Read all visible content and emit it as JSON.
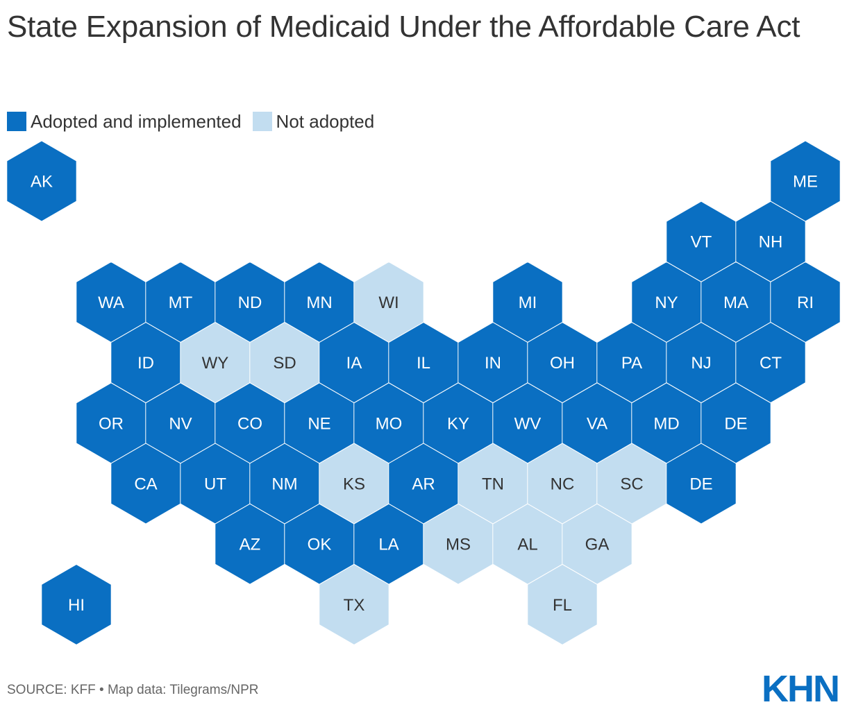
{
  "title": "State Expansion of Medicaid Under the Affordable Care Act",
  "legend": {
    "adopted": "Adopted and implemented",
    "not_adopted": "Not adopted"
  },
  "colors": {
    "adopted": "#0a6fc2",
    "not_adopted": "#c2ddf0",
    "label_on_adopted": "#ffffff",
    "label_on_not_adopted": "#333333"
  },
  "states": [
    {
      "abbr": "AK",
      "status": "adopted",
      "row": 0,
      "col": 0
    },
    {
      "abbr": "ME",
      "status": "adopted",
      "row": 0,
      "col": 11
    },
    {
      "abbr": "VT",
      "status": "adopted",
      "row": 1,
      "col": 9.5
    },
    {
      "abbr": "NH",
      "status": "adopted",
      "row": 1,
      "col": 10.5
    },
    {
      "abbr": "WA",
      "status": "adopted",
      "row": 2,
      "col": 1
    },
    {
      "abbr": "MT",
      "status": "adopted",
      "row": 2,
      "col": 2
    },
    {
      "abbr": "ND",
      "status": "adopted",
      "row": 2,
      "col": 3
    },
    {
      "abbr": "MN",
      "status": "adopted",
      "row": 2,
      "col": 4
    },
    {
      "abbr": "WI",
      "status": "not_adopted",
      "row": 2,
      "col": 5
    },
    {
      "abbr": "MI",
      "status": "adopted",
      "row": 2,
      "col": 7
    },
    {
      "abbr": "NY",
      "status": "adopted",
      "row": 2,
      "col": 9
    },
    {
      "abbr": "MA",
      "status": "adopted",
      "row": 2,
      "col": 10
    },
    {
      "abbr": "RI",
      "status": "adopted",
      "row": 2,
      "col": 11
    },
    {
      "abbr": "ID",
      "status": "adopted",
      "row": 3,
      "col": 1.5
    },
    {
      "abbr": "WY",
      "status": "not_adopted",
      "row": 3,
      "col": 2.5
    },
    {
      "abbr": "SD",
      "status": "not_adopted",
      "row": 3,
      "col": 3.5
    },
    {
      "abbr": "IA",
      "status": "adopted",
      "row": 3,
      "col": 4.5
    },
    {
      "abbr": "IL",
      "status": "adopted",
      "row": 3,
      "col": 5.5
    },
    {
      "abbr": "IN",
      "status": "adopted",
      "row": 3,
      "col": 6.5
    },
    {
      "abbr": "OH",
      "status": "adopted",
      "row": 3,
      "col": 7.5
    },
    {
      "abbr": "PA",
      "status": "adopted",
      "row": 3,
      "col": 8.5
    },
    {
      "abbr": "NJ",
      "status": "adopted",
      "row": 3,
      "col": 9.5
    },
    {
      "abbr": "CT",
      "status": "adopted",
      "row": 3,
      "col": 10.5
    },
    {
      "abbr": "OR",
      "status": "adopted",
      "row": 4,
      "col": 1
    },
    {
      "abbr": "NV",
      "status": "adopted",
      "row": 4,
      "col": 2
    },
    {
      "abbr": "CO",
      "status": "adopted",
      "row": 4,
      "col": 3
    },
    {
      "abbr": "NE",
      "status": "adopted",
      "row": 4,
      "col": 4
    },
    {
      "abbr": "MO",
      "status": "adopted",
      "row": 4,
      "col": 5
    },
    {
      "abbr": "KY",
      "status": "adopted",
      "row": 4,
      "col": 6
    },
    {
      "abbr": "WV",
      "status": "adopted",
      "row": 4,
      "col": 7
    },
    {
      "abbr": "VA",
      "status": "adopted",
      "row": 4,
      "col": 8
    },
    {
      "abbr": "MD",
      "status": "adopted",
      "row": 4,
      "col": 9
    },
    {
      "abbr": "DE",
      "status": "adopted",
      "row": 4,
      "col": 10
    },
    {
      "abbr": "CA",
      "status": "adopted",
      "row": 5,
      "col": 1.5
    },
    {
      "abbr": "UT",
      "status": "adopted",
      "row": 5,
      "col": 2.5
    },
    {
      "abbr": "NM",
      "status": "adopted",
      "row": 5,
      "col": 3.5
    },
    {
      "abbr": "KS",
      "status": "not_adopted",
      "row": 5,
      "col": 4.5
    },
    {
      "abbr": "AR",
      "status": "adopted",
      "row": 5,
      "col": 5.5
    },
    {
      "abbr": "TN",
      "status": "not_adopted",
      "row": 5,
      "col": 6.5
    },
    {
      "abbr": "NC",
      "status": "not_adopted",
      "row": 5,
      "col": 7.5
    },
    {
      "abbr": "SC",
      "status": "not_adopted",
      "row": 5,
      "col": 8.5
    },
    {
      "abbr": "DE",
      "status": "adopted",
      "row": 5,
      "col": 9.5
    },
    {
      "abbr": "AZ",
      "status": "adopted",
      "row": 6,
      "col": 3
    },
    {
      "abbr": "OK",
      "status": "adopted",
      "row": 6,
      "col": 4
    },
    {
      "abbr": "LA",
      "status": "adopted",
      "row": 6,
      "col": 5
    },
    {
      "abbr": "MS",
      "status": "not_adopted",
      "row": 6,
      "col": 6
    },
    {
      "abbr": "AL",
      "status": "not_adopted",
      "row": 6,
      "col": 7
    },
    {
      "abbr": "GA",
      "status": "not_adopted",
      "row": 6,
      "col": 8
    },
    {
      "abbr": "HI",
      "status": "adopted",
      "row": 7,
      "col": 0.5
    },
    {
      "abbr": "TX",
      "status": "not_adopted",
      "row": 7,
      "col": 4.5
    },
    {
      "abbr": "FL",
      "status": "not_adopted",
      "row": 7,
      "col": 7.5
    }
  ],
  "source": "SOURCE: KFF • Map data: Tilegrams/NPR",
  "logo": "KHN"
}
